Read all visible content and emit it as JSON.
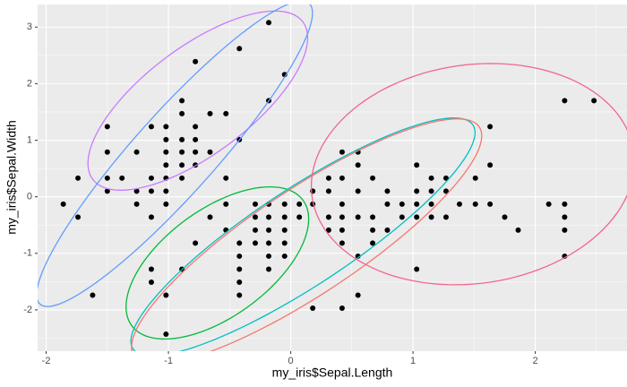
{
  "chart_data": {
    "type": "scatter",
    "xlabel": "my_iris$Sepal.Length",
    "ylabel": "my_iris$Sepal.Width",
    "xlim": [
      -2.07,
      2.75
    ],
    "ylim": [
      -2.73,
      3.4
    ],
    "xticks": [
      -2,
      -1,
      0,
      1,
      2
    ],
    "yticks": [
      -2,
      -1,
      0,
      1,
      2,
      3
    ],
    "grid": true,
    "color": "#000000",
    "x": [
      -0.18,
      -0.42,
      -0.78,
      -0.05,
      -0.89,
      -0.18,
      2.24,
      2.48,
      -0.89,
      -0.66,
      -0.53,
      -1.5,
      -1.14,
      -1.02,
      -0.78,
      1.63,
      -1.02,
      -0.89,
      -0.78,
      -0.42,
      -1.5,
      -1.26,
      -1.02,
      -0.89,
      -0.78,
      -0.66,
      0.42,
      0.55,
      -1.02,
      -0.89,
      -0.78,
      0.55,
      1.03,
      1.63,
      -1.74,
      -1.5,
      -1.38,
      -1.14,
      -1.02,
      -0.89,
      -0.53,
      0.31,
      0.42,
      0.67,
      1.15,
      1.27,
      1.51,
      -1.5,
      -1.26,
      -1.14,
      -1.02,
      0.18,
      0.31,
      0.55,
      0.79,
      1.03,
      1.15,
      1.27,
      -1.86,
      -1.26,
      -1.02,
      -0.53,
      -0.29,
      -0.18,
      -0.05,
      0.07,
      0.18,
      0.42,
      0.79,
      0.91,
      1.03,
      1.15,
      1.38,
      1.51,
      1.63,
      2.11,
      2.24,
      -1.74,
      -1.14,
      -0.66,
      -0.29,
      -0.18,
      -0.05,
      0.07,
      0.31,
      0.42,
      0.55,
      0.67,
      0.91,
      1.03,
      1.15,
      1.27,
      1.75,
      2.24,
      -0.53,
      -0.29,
      -0.18,
      -0.05,
      0.31,
      0.42,
      0.67,
      0.79,
      1.86,
      2.24,
      -0.78,
      -0.42,
      -0.29,
      -0.18,
      -0.05,
      0.42,
      0.67,
      -0.42,
      -0.18,
      -0.05,
      0.55,
      2.24,
      -1.14,
      -0.89,
      -0.42,
      -0.18,
      1.03,
      -1.14,
      -0.42,
      -1.62,
      -1.02,
      -0.42,
      0.55,
      0.18,
      0.42,
      -1.02
    ],
    "values": [
      3.08,
      2.62,
      2.39,
      2.16,
      1.7,
      1.7,
      1.7,
      1.7,
      1.47,
      1.47,
      1.47,
      1.24,
      1.24,
      1.24,
      1.24,
      1.24,
      1.01,
      1.01,
      1.01,
      1.01,
      0.79,
      0.79,
      0.79,
      0.79,
      0.79,
      0.79,
      0.79,
      0.79,
      0.56,
      0.56,
      0.56,
      0.56,
      0.56,
      0.56,
      0.33,
      0.33,
      0.33,
      0.33,
      0.33,
      0.33,
      0.33,
      0.33,
      0.33,
      0.33,
      0.33,
      0.33,
      0.33,
      0.1,
      0.1,
      0.1,
      0.1,
      0.1,
      0.1,
      0.1,
      0.1,
      0.1,
      0.1,
      0.1,
      -0.13,
      -0.13,
      -0.13,
      -0.13,
      -0.13,
      -0.13,
      -0.13,
      -0.13,
      -0.13,
      -0.13,
      -0.13,
      -0.13,
      -0.13,
      -0.13,
      -0.13,
      -0.13,
      -0.13,
      -0.13,
      -0.13,
      -0.36,
      -0.36,
      -0.36,
      -0.36,
      -0.36,
      -0.36,
      -0.36,
      -0.36,
      -0.36,
      -0.36,
      -0.36,
      -0.36,
      -0.36,
      -0.36,
      -0.36,
      -0.36,
      -0.36,
      -0.59,
      -0.59,
      -0.59,
      -0.59,
      -0.59,
      -0.59,
      -0.59,
      -0.59,
      -0.59,
      -0.59,
      -0.82,
      -0.82,
      -0.82,
      -0.82,
      -0.82,
      -0.82,
      -0.82,
      -1.05,
      -1.05,
      -1.05,
      -1.05,
      -1.05,
      -1.28,
      -1.28,
      -1.28,
      -1.28,
      -1.28,
      -1.51,
      -1.51,
      -1.74,
      -1.74,
      -1.74,
      -1.74,
      -1.97,
      -1.97,
      -2.43
    ],
    "ellipses": [
      {
        "color": "#C77CFF",
        "cx": -0.76,
        "cy": 1.7,
        "u": [
          0.86,
          1.39
        ],
        "v": [
          0.26,
          -0.76
        ]
      },
      {
        "color": "#619CFF",
        "cx": -0.95,
        "cy": 0.76,
        "u": [
          1.1,
          2.66
        ],
        "v": [
          0.25,
          -0.47
        ]
      },
      {
        "color": "#00BA38",
        "cx": -0.6,
        "cy": -1.17,
        "u": [
          0.7,
          1.11
        ],
        "v": [
          0.26,
          -0.76
        ]
      },
      {
        "color": "#00BFC4",
        "cx": 0.1,
        "cy": -0.71,
        "u": [
          1.39,
          1.98
        ],
        "v": [
          0.22,
          -0.71
        ]
      },
      {
        "color": "#F8766D",
        "cx": 0.13,
        "cy": -0.79,
        "u": [
          1.41,
          2.03
        ],
        "v": [
          0.25,
          -0.76
        ]
      },
      {
        "color": "#F2668B",
        "cx": 1.49,
        "cy": 0.4,
        "u": [
          1.32,
          0.32
        ],
        "v": [
          0.07,
          -1.93
        ]
      }
    ]
  }
}
